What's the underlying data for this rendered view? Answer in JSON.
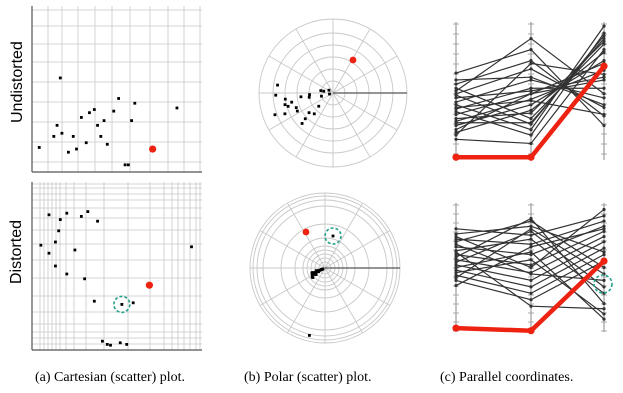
{
  "row_labels": [
    "Undistorted",
    "Distorted"
  ],
  "captions": {
    "cartesian": "(a) Cartesian (scatter) plot.",
    "polar": "(b) Polar (scatter) plot.",
    "parallel": "(c) Parallel coordinates."
  },
  "colors": {
    "points": "#000000",
    "highlight": "#ee2211",
    "grid": "#c8c8c8",
    "axis": "#555555",
    "lines": "#333333",
    "focus_ring": "#22a08a"
  },
  "panels": {
    "cartesian_undistorted": {
      "points": [
        [
          0.02,
          0.13
        ],
        [
          0.2,
          0.1
        ],
        [
          0.15,
          0.57
        ],
        [
          0.11,
          0.2
        ],
        [
          0.13,
          0.27
        ],
        [
          0.16,
          0.22
        ],
        [
          0.23,
          0.2
        ],
        [
          0.25,
          0.12
        ],
        [
          0.28,
          0.32
        ],
        [
          0.31,
          0.16
        ],
        [
          0.33,
          0.35
        ],
        [
          0.36,
          0.37
        ],
        [
          0.38,
          0.27
        ],
        [
          0.42,
          0.3
        ],
        [
          0.44,
          0.15
        ],
        [
          0.48,
          0.36
        ],
        [
          0.55,
          0.02
        ],
        [
          0.57,
          0.02
        ],
        [
          0.4,
          0.2
        ],
        [
          0.51,
          0.44
        ],
        [
          0.59,
          0.3
        ],
        [
          0.61,
          0.41
        ],
        [
          0.87,
          0.38
        ]
      ],
      "highlight": [
        0.72,
        0.12
      ]
    },
    "cartesian_distorted": {
      "points": [
        [
          0.03,
          0.63
        ],
        [
          0.08,
          0.82
        ],
        [
          0.12,
          0.65
        ],
        [
          0.15,
          0.79
        ],
        [
          0.19,
          0.83
        ],
        [
          0.14,
          0.72
        ],
        [
          0.24,
          0.6
        ],
        [
          0.08,
          0.58
        ],
        [
          0.28,
          0.81
        ],
        [
          0.32,
          0.84
        ],
        [
          0.38,
          0.78
        ],
        [
          0.19,
          0.45
        ],
        [
          0.12,
          0.5
        ],
        [
          0.3,
          0.42
        ],
        [
          0.36,
          0.28
        ],
        [
          0.41,
          0.03
        ],
        [
          0.44,
          0.01
        ],
        [
          0.46,
          0.005
        ],
        [
          0.52,
          0.02
        ],
        [
          0.56,
          0.01
        ],
        [
          0.6,
          0.27
        ],
        [
          0.96,
          0.62
        ]
      ],
      "highlight": [
        0.7,
        0.38
      ],
      "focus_point": [
        0.53,
        0.26
      ]
    },
    "polar_undistorted": {
      "points": [
        [
          290,
          350
        ],
        [
          268,
          318
        ],
        [
          262,
          300
        ],
        [
          245,
          355
        ],
        [
          231,
          338
        ],
        [
          225,
          327
        ],
        [
          219,
          343
        ],
        [
          203,
          392
        ],
        [
          198,
          336
        ],
        [
          187,
          361
        ],
        [
          185,
          352
        ],
        [
          177,
          389
        ],
        [
          151,
          326
        ],
        [
          145,
          383
        ],
        [
          131,
          398
        ],
        [
          113,
          332
        ],
        [
          110,
          321
        ],
        [
          91,
          389
        ],
        [
          58,
          295
        ],
        [
          56,
          341
        ],
        [
          44,
          295
        ],
        [
          23,
          254
        ],
        [
          17,
          342
        ]
      ],
      "highlight": [
        33,
        292
      ]
    },
    "polar_distorted": {
      "points": [
        [
          267,
          376
        ],
        [
          265,
          381
        ],
        [
          257,
          362
        ],
        [
          253,
          351
        ],
        [
          246,
          356
        ],
        [
          243,
          366
        ],
        [
          239,
          352
        ],
        [
          234,
          361
        ],
        [
          228,
          378
        ],
        [
          225,
          363
        ],
        [
          219,
          358
        ],
        [
          212,
          343
        ],
        [
          204,
          352
        ],
        [
          197,
          367
        ],
        [
          193,
          349
        ],
        [
          185,
          354
        ],
        [
          178,
          356
        ],
        [
          168,
          356
        ],
        [
          164,
          357
        ],
        [
          161,
          355
        ],
        [
          152,
          356
        ],
        [
          249,
          349
        ]
      ],
      "highlight": [
        160,
        264
      ],
      "focus_point": [
        100,
        170
      ]
    },
    "parallel_undistorted": {
      "lines": [
        [
          0.63,
          0.8,
          0.25
        ],
        [
          0.55,
          0.72,
          0.32
        ],
        [
          0.48,
          0.66,
          0.38
        ],
        [
          0.42,
          0.58,
          0.45
        ],
        [
          0.37,
          0.52,
          0.52
        ],
        [
          0.33,
          0.48,
          0.58
        ],
        [
          0.28,
          0.44,
          0.65
        ],
        [
          0.25,
          0.4,
          0.72
        ],
        [
          0.2,
          0.36,
          0.78
        ],
        [
          0.52,
          0.3,
          0.84
        ],
        [
          0.47,
          0.26,
          0.9
        ],
        [
          0.4,
          0.22,
          0.97
        ],
        [
          0.35,
          0.18,
          0.92
        ],
        [
          0.22,
          0.48,
          0.7
        ],
        [
          0.3,
          0.34,
          0.86
        ],
        [
          0.58,
          0.6,
          0.4
        ],
        [
          0.45,
          0.5,
          0.6
        ],
        [
          0.27,
          0.27,
          0.88
        ],
        [
          0.38,
          0.43,
          0.33
        ],
        [
          0.18,
          0.7,
          0.62
        ],
        [
          0.5,
          0.88,
          0.48
        ],
        [
          0.15,
          0.12,
          0.8
        ]
      ],
      "highlight": [
        0.02,
        0.02,
        0.68
      ]
    },
    "parallel_distorted": {
      "lines": [
        [
          0.8,
          0.75,
          0.9
        ],
        [
          0.72,
          0.68,
          0.86
        ],
        [
          0.66,
          0.6,
          0.82
        ],
        [
          0.6,
          0.52,
          0.78
        ],
        [
          0.56,
          0.46,
          0.74
        ],
        [
          0.52,
          0.4,
          0.7
        ],
        [
          0.48,
          0.35,
          0.65
        ],
        [
          0.44,
          0.3,
          0.6
        ],
        [
          0.4,
          0.25,
          0.55
        ],
        [
          0.76,
          0.82,
          0.62
        ],
        [
          0.7,
          0.86,
          0.5
        ],
        [
          0.63,
          0.72,
          0.3
        ],
        [
          0.58,
          0.88,
          0.22
        ],
        [
          0.5,
          0.62,
          0.1
        ],
        [
          0.46,
          0.56,
          0.14
        ],
        [
          0.68,
          0.45,
          0.4
        ],
        [
          0.54,
          0.78,
          0.35
        ],
        [
          0.62,
          0.2,
          0.18
        ],
        [
          0.36,
          0.66,
          0.8
        ],
        [
          0.74,
          0.5,
          0.95
        ],
        [
          0.42,
          0.8,
          0.45
        ]
      ],
      "highlight": [
        0.03,
        0.01,
        0.55
      ],
      "focus_axis": 2
    }
  }
}
